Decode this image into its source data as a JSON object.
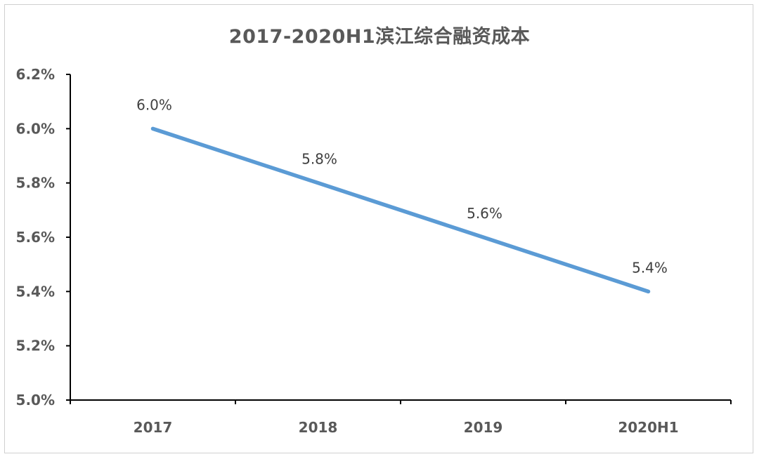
{
  "chart_data": {
    "type": "line",
    "title": "2017-2020H1滨江综合融资成本",
    "categories": [
      "2017",
      "2018",
      "2019",
      "2020H1"
    ],
    "series": [
      {
        "values": [
          6.0,
          5.8,
          5.6,
          5.4
        ],
        "data_labels": [
          "6.0%",
          "5.8%",
          "5.6%",
          "5.4%"
        ]
      }
    ],
    "y_ticks": [
      5.0,
      5.2,
      5.4,
      5.6,
      5.8,
      6.0,
      6.2
    ],
    "y_tick_labels": [
      "5.0%",
      "5.2%",
      "5.4%",
      "5.6%",
      "5.8%",
      "6.0%",
      "6.2%"
    ],
    "ylim": [
      5.0,
      6.2
    ],
    "xlabel": "",
    "ylabel": "",
    "grid": false,
    "legend": "none",
    "colors": {
      "line": "#5b9bd5",
      "axis": "#000000",
      "text": "#595959"
    }
  }
}
